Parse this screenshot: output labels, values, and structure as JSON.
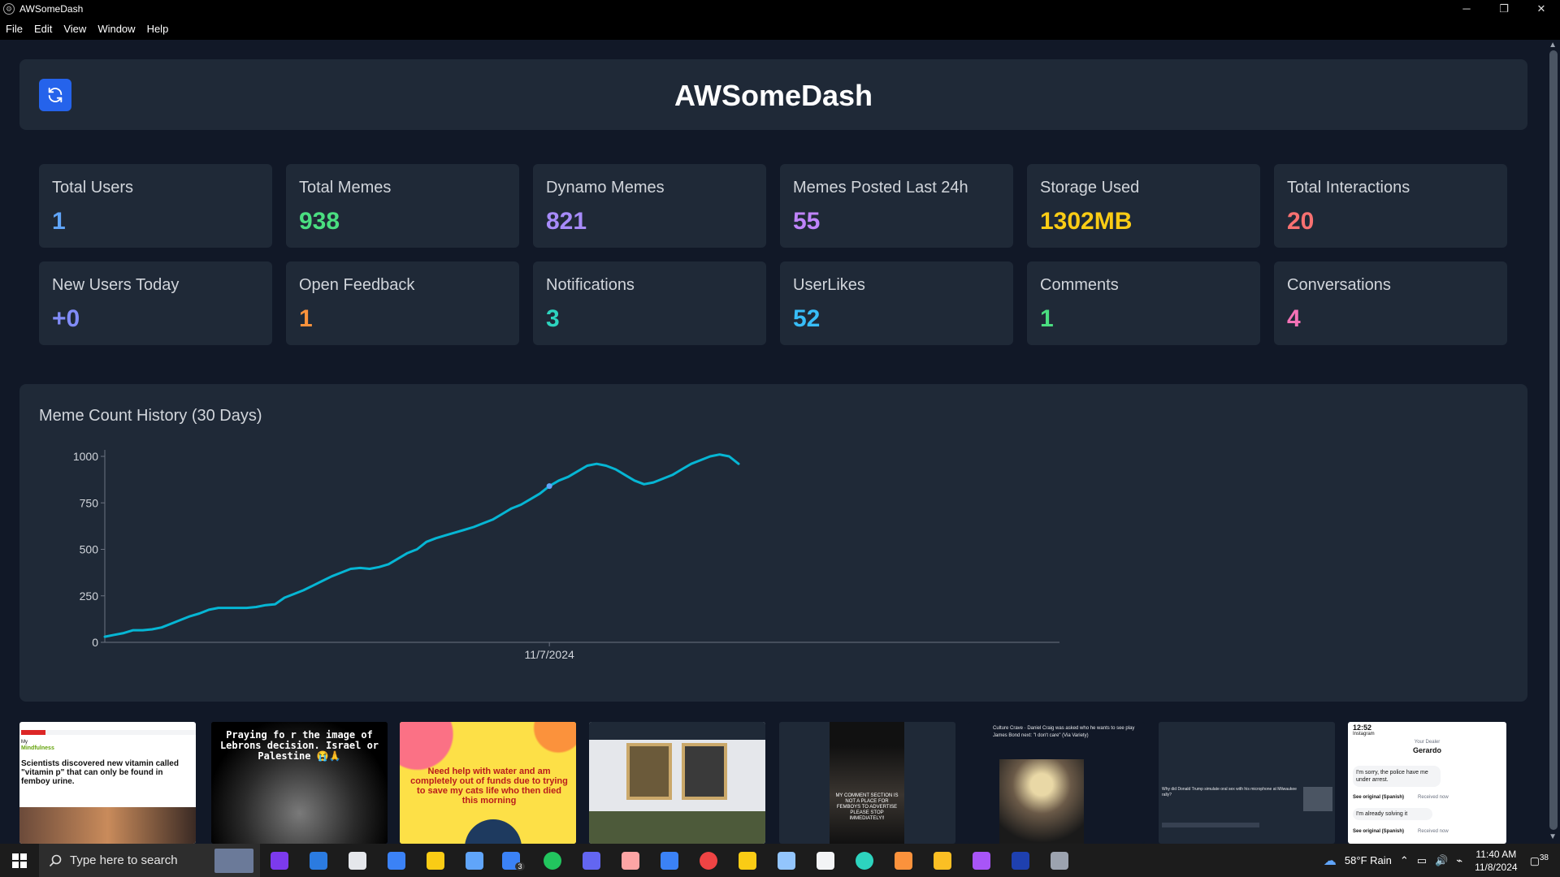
{
  "window": {
    "title": "AWSomeDash",
    "controls": [
      "─",
      "❐",
      "✕"
    ]
  },
  "menu": [
    "File",
    "Edit",
    "View",
    "Window",
    "Help"
  ],
  "header": {
    "title": "AWSomeDash"
  },
  "stats": [
    {
      "label": "Total Users",
      "value": "1",
      "color": "#60a5fa"
    },
    {
      "label": "Total Memes",
      "value": "938",
      "color": "#4ade80"
    },
    {
      "label": "Dynamo Memes",
      "value": "821",
      "color": "#a78bfa"
    },
    {
      "label": "Memes Posted Last 24h",
      "value": "55",
      "color": "#c084fc"
    },
    {
      "label": "Storage Used",
      "value": "1302MB",
      "color": "#facc15"
    },
    {
      "label": "Total Interactions",
      "value": "20",
      "color": "#f87171"
    },
    {
      "label": "New Users Today",
      "value": "+0",
      "color": "#818cf8"
    },
    {
      "label": "Open Feedback",
      "value": "1",
      "color": "#fb923c"
    },
    {
      "label": "Notifications",
      "value": "3",
      "color": "#2dd4bf"
    },
    {
      "label": "UserLikes",
      "value": "52",
      "color": "#38bdf8"
    },
    {
      "label": "Comments",
      "value": "1",
      "color": "#4ade80"
    },
    {
      "label": "Conversations",
      "value": "4",
      "color": "#f472b6"
    }
  ],
  "chart": {
    "title": "Meme Count History (30 Days)"
  },
  "chart_data": {
    "type": "line",
    "title": "Meme Count History (30 Days)",
    "xlabel": "",
    "ylabel": "",
    "y_ticks": [
      "0",
      "250",
      "500",
      "750",
      "1000"
    ],
    "ylim": [
      0,
      1000
    ],
    "x_ticks": [
      "11/7/2024"
    ],
    "line_color": "#06b6d4",
    "values": [
      30,
      40,
      50,
      65,
      65,
      70,
      80,
      100,
      120,
      140,
      155,
      175,
      185,
      185,
      185,
      185,
      190,
      200,
      205,
      240,
      260,
      280,
      305,
      330,
      355,
      375,
      395,
      400,
      395,
      405,
      420,
      450,
      480,
      500,
      540,
      560,
      575,
      590,
      605,
      620,
      640,
      660,
      690,
      720,
      740,
      770,
      800,
      840,
      870,
      890,
      920,
      950,
      960,
      950,
      930,
      900,
      870,
      850,
      860,
      880,
      900,
      930,
      960,
      980,
      1000,
      1010,
      1000,
      960
    ],
    "highlight_index": 47,
    "highlight_label": "11/7/2024"
  },
  "thumbnails": [
    {
      "kind": "article",
      "text": "Scientists discovered new vitamin called \"vitamin p\" that can only be found in femboy urine."
    },
    {
      "kind": "dark-face",
      "text": "Praying fo r the image of Lebrons decision. Israel or Palestine 😭🙏"
    },
    {
      "kind": "yellow",
      "text": "Need help with water and am completely out of funds due to trying to save my cats life who then died this morning"
    },
    {
      "kind": "portraits",
      "text": ""
    },
    {
      "kind": "phone-dark",
      "text": "MY COMMENT SECTION IS NOT A PLACE FOR FEMBOYS TO ADVERTISE PLEASE STOP IMMEDIATELY!!"
    },
    {
      "kind": "tweet",
      "text": "Culture Crave · Daniel Craig was asked who he wants to see play James Bond next: \"I don't care\" (Via Variety)"
    },
    {
      "kind": "tweet-dark",
      "text": "Why did Donald Trump simulate oral sex with his microphone at Milwaukee rally?"
    },
    {
      "kind": "chat",
      "text": "I'm sorry, the police have me under arrest."
    }
  ],
  "chat_thumb": {
    "time": "12:52",
    "back": "Instagram",
    "name": "Gerardo",
    "subtitle": "Your Dealer",
    "msg2": "I'm already solving it",
    "see": "See original (Spanish)",
    "recv": "Received now"
  },
  "taskbar": {
    "search_placeholder": "Type here to search",
    "weather": "58°F  Rain",
    "time": "11:40 AM",
    "date": "11/8/2024",
    "notif_count": "38",
    "mail_badge": "3",
    "icons": [
      {
        "name": "copilot-icon",
        "color": "#7c3aed"
      },
      {
        "name": "vscode-icon",
        "color": "#2b7be0"
      },
      {
        "name": "vectorworks-icon",
        "color": "#e5e7eb"
      },
      {
        "name": "calculator-icon",
        "color": "#3b82f6"
      },
      {
        "name": "file-explorer-icon",
        "color": "#facc15"
      },
      {
        "name": "store-icon",
        "color": "#60a5fa"
      },
      {
        "name": "mail-icon",
        "color": "#3b82f6"
      },
      {
        "name": "edge-icon",
        "color": "#22c55e"
      },
      {
        "name": "power-automate-icon",
        "color": "#6366f1"
      },
      {
        "name": "shell-icon",
        "color": "#fca5a5"
      },
      {
        "name": "app-a-icon",
        "color": "#3b82f6"
      },
      {
        "name": "chrome-icon",
        "color": "#ef4444"
      },
      {
        "name": "sticky-notes-icon",
        "color": "#facc15"
      },
      {
        "name": "steam-icon",
        "color": "#93c5fd"
      },
      {
        "name": "epic-icon",
        "color": "#f3f4f6"
      },
      {
        "name": "app-globe-icon",
        "color": "#2dd4bf"
      },
      {
        "name": "app-burst-icon",
        "color": "#fb923c"
      },
      {
        "name": "app-canvas-icon",
        "color": "#fbbf24"
      },
      {
        "name": "app-purple-icon",
        "color": "#a855f7"
      },
      {
        "name": "powershell-icon",
        "color": "#1e40af"
      },
      {
        "name": "electron-icon",
        "color": "#9ca3af"
      }
    ]
  }
}
